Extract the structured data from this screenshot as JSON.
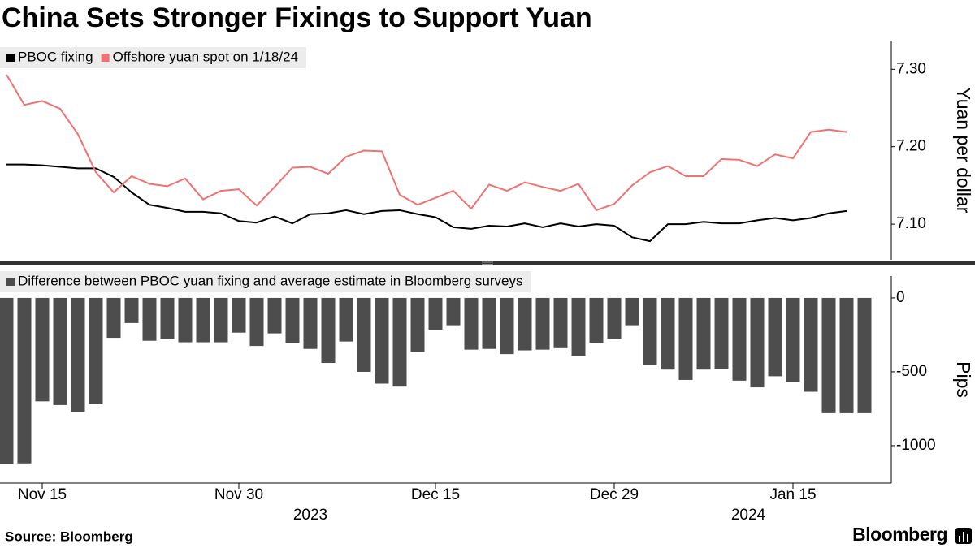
{
  "title": "China Sets Stronger Fixings to Support Yuan",
  "source": "Source: Bloomberg",
  "logo": "Bloomberg",
  "chart_data": [
    {
      "type": "line",
      "y_label": "Yuan per dollar",
      "categories": [
        "2023-11-13",
        "2023-11-14",
        "2023-11-15",
        "2023-11-16",
        "2023-11-17",
        "2023-11-20",
        "2023-11-21",
        "2023-11-22",
        "2023-11-23",
        "2023-11-24",
        "2023-11-27",
        "2023-11-28",
        "2023-11-29",
        "2023-11-30",
        "2023-12-01",
        "2023-12-04",
        "2023-12-05",
        "2023-12-06",
        "2023-12-07",
        "2023-12-08",
        "2023-12-11",
        "2023-12-12",
        "2023-12-13",
        "2023-12-14",
        "2023-12-15",
        "2023-12-18",
        "2023-12-19",
        "2023-12-20",
        "2023-12-21",
        "2023-12-22",
        "2023-12-25",
        "2023-12-26",
        "2023-12-27",
        "2023-12-28",
        "2023-12-29",
        "2024-01-02",
        "2024-01-03",
        "2024-01-04",
        "2024-01-05",
        "2024-01-08",
        "2024-01-09",
        "2024-01-10",
        "2024-01-11",
        "2024-01-12",
        "2024-01-15",
        "2024-01-16",
        "2024-01-17",
        "2024-01-18",
        "2024-01-19"
      ],
      "series": [
        {
          "name": "PBOC fixing",
          "color": "#000000",
          "values": [
            7.177,
            7.177,
            7.176,
            7.174,
            7.172,
            7.172,
            7.161,
            7.141,
            7.125,
            7.121,
            7.116,
            7.116,
            7.114,
            7.104,
            7.102,
            7.11,
            7.101,
            7.113,
            7.114,
            7.118,
            7.113,
            7.117,
            7.118,
            7.113,
            7.109,
            7.096,
            7.094,
            7.098,
            7.097,
            7.101,
            7.096,
            7.101,
            7.097,
            7.1,
            7.098,
            7.083,
            7.078,
            7.1,
            7.1,
            7.103,
            7.101,
            7.101,
            7.105,
            7.108,
            7.105,
            7.108,
            7.114,
            7.117,
            null
          ]
        },
        {
          "name": "Offshore yuan spot on 1/18/24",
          "color": "#f07171",
          "values": [
            7.293,
            7.254,
            7.259,
            7.249,
            7.216,
            7.167,
            7.141,
            7.162,
            7.152,
            7.149,
            7.159,
            7.132,
            7.143,
            7.145,
            7.124,
            7.148,
            7.173,
            7.174,
            7.165,
            7.187,
            7.195,
            7.194,
            7.138,
            7.125,
            7.134,
            7.143,
            7.12,
            7.151,
            7.143,
            7.154,
            7.148,
            7.143,
            7.152,
            7.118,
            7.126,
            7.15,
            7.167,
            7.175,
            7.162,
            7.162,
            7.184,
            7.183,
            7.175,
            7.19,
            7.185,
            7.219,
            7.222,
            7.219,
            null
          ]
        }
      ],
      "ylim": [
        7.054,
        7.337
      ],
      "yticks": [
        {
          "value": 7.1,
          "label": "7.10"
        },
        {
          "value": 7.2,
          "label": "7.20"
        },
        {
          "value": 7.3,
          "label": "7.30"
        }
      ],
      "grid": false
    },
    {
      "type": "bar",
      "y_label": "Pips",
      "categories": [
        "2023-11-13",
        "2023-11-14",
        "2023-11-15",
        "2023-11-16",
        "2023-11-17",
        "2023-11-20",
        "2023-11-21",
        "2023-11-22",
        "2023-11-23",
        "2023-11-24",
        "2023-11-27",
        "2023-11-28",
        "2023-11-29",
        "2023-11-30",
        "2023-12-01",
        "2023-12-04",
        "2023-12-05",
        "2023-12-06",
        "2023-12-07",
        "2023-12-08",
        "2023-12-11",
        "2023-12-12",
        "2023-12-13",
        "2023-12-14",
        "2023-12-15",
        "2023-12-18",
        "2023-12-19",
        "2023-12-20",
        "2023-12-21",
        "2023-12-22",
        "2023-12-25",
        "2023-12-26",
        "2023-12-27",
        "2023-12-28",
        "2023-12-29",
        "2024-01-02",
        "2024-01-03",
        "2024-01-04",
        "2024-01-05",
        "2024-01-08",
        "2024-01-09",
        "2024-01-10",
        "2024-01-11",
        "2024-01-12",
        "2024-01-15",
        "2024-01-16",
        "2024-01-17",
        "2024-01-18",
        "2024-01-19"
      ],
      "series": [
        {
          "name": "Difference between PBOC yuan fixing and average estimate in Bloomberg surveys",
          "color": "#4d4d4d",
          "values": [
            -1126,
            -1120,
            -700,
            -725,
            -770,
            -720,
            -270,
            -170,
            -290,
            -275,
            -300,
            -300,
            -300,
            -235,
            -325,
            -240,
            -305,
            -345,
            -440,
            -295,
            -500,
            -580,
            -600,
            -365,
            -215,
            -185,
            -350,
            -345,
            -380,
            -355,
            -350,
            -340,
            -395,
            -305,
            -275,
            -185,
            -455,
            -485,
            -555,
            -485,
            -480,
            -560,
            -605,
            -530,
            -570,
            -635,
            -780,
            -780,
            -780
          ]
        }
      ],
      "ylim": [
        -1253,
        148
      ],
      "yticks": [
        0,
        -500,
        -1000
      ],
      "xticks": [
        {
          "value": "2023-11-15",
          "label": "Nov 15"
        },
        {
          "value": "2023-11-30",
          "label": "Nov 30"
        },
        {
          "value": "2023-12-15",
          "label": "Dec 15"
        },
        {
          "value": "2023-12-29",
          "label": "Dec 29"
        },
        {
          "value": "2024-01-15",
          "label": "Jan 15"
        }
      ],
      "xgroups": [
        "2023",
        "2024"
      ],
      "grid": false
    }
  ]
}
